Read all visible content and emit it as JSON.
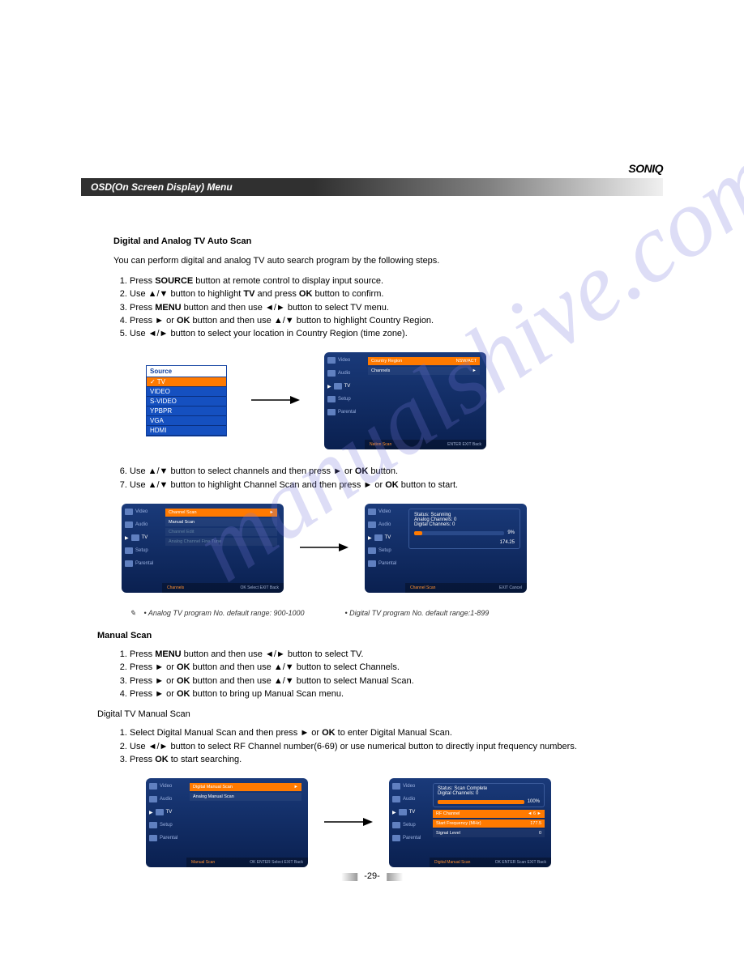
{
  "brand": "SONIQ",
  "title": "OSD(On Screen Display) Menu",
  "page_number": "-29-",
  "watermark": "manualshive.com",
  "section1": {
    "heading": "Digital and Analog TV Auto Scan",
    "intro": "You can perform digital and analog TV auto search program by the following steps.",
    "steps_a": [
      "Press <b>SOURCE</b> button at remote control to display input source.",
      "Use ▲/▼ button to highlight <b>TV</b> and press <b>OK</b> button to confirm.",
      "Press <b>MENU</b> button and then use ◄/► button to select TV menu.",
      "Press ► or <b>OK</b> button and then use ▲/▼ button to highlight Country Region.",
      "Use ◄/► button to select your location in Country Region (time zone)."
    ],
    "steps_b": [
      "Use ▲/▼ button to select channels and then press ► or <b>OK</b> button.",
      "Use ▲/▼ button to highlight Channel Scan and then press ► or <b>OK</b> button to start."
    ]
  },
  "source_menu": {
    "header": "Source",
    "items": [
      "TV",
      "VIDEO",
      "S-VIDEO",
      "YPBPR",
      "VGA",
      "HDMI"
    ],
    "selected_index": 0
  },
  "osd_tabs": [
    "Video",
    "Audio",
    "TV",
    "Setup",
    "Parental"
  ],
  "osd_panel_a": {
    "rows": [
      {
        "label": "Country Region",
        "value": "NSW/ACT",
        "highlight": true
      },
      {
        "label": "Channels",
        "value": "►",
        "highlight": false
      }
    ],
    "footer_left": "Nation Scan"
  },
  "osd_panel_b": {
    "rows": [
      {
        "label": "Channel Scan",
        "value": "►",
        "highlight": true
      },
      {
        "label": "Manual Scan",
        "value": "",
        "highlight": false
      },
      {
        "label": "Channel Edit",
        "value": "",
        "highlight": false,
        "dim": true
      },
      {
        "label": "Analog Channel Fine Tune",
        "value": "",
        "highlight": false,
        "dim": true
      }
    ],
    "footer_left": "Channels"
  },
  "osd_panel_c": {
    "status": "Status: Scanning",
    "analog": "Analog Channels: 0",
    "digital": "Digital Channels: 0",
    "pct": "9%",
    "pct_width": "9%",
    "freq": "174.25",
    "footer_left": "Channel Scan"
  },
  "caption": {
    "left": "• Analog TV program No. default range: 900-1000",
    "right": "• Digital TV program No. default range:1-899"
  },
  "section2": {
    "heading": "Manual Scan",
    "steps": [
      "Press <b>MENU</b> button and then use ◄/► button to select TV.",
      "Press ► or <b>OK</b> button and then use ▲/▼ button to select Channels.",
      "Press ► or <b>OK</b> button and then use ▲/▼ button to select Manual Scan.",
      "Press ► or <b>OK</b> button to bring up Manual Scan menu."
    ]
  },
  "section3": {
    "heading": "Digital TV Manual Scan",
    "steps": [
      "Select Digital Manual Scan and then press ► or <b>OK</b> to enter Digital Manual Scan.",
      "Use ◄/► button to select RF Channel number(6-69) or use numerical button to directly input frequency numbers.",
      "Press <b>OK</b> to start searching."
    ]
  },
  "osd_panel_d": {
    "rows": [
      {
        "label": "Digital Manual Scan",
        "value": "►",
        "highlight": true
      },
      {
        "label": "Analog Manual Scan",
        "value": "",
        "highlight": false
      }
    ],
    "footer_left": "Manual Scan"
  },
  "osd_panel_e": {
    "status": "Status: Scan Complete",
    "digital": "Digital Channels: 0",
    "pct": "100%",
    "pct_width": "100%",
    "rf_label": "RF Channel",
    "rf_value": "6",
    "freq_label": "Start Frequency (MHz)",
    "freq_value": "177.5",
    "signal_label": "Signal Level",
    "signal_value": "0",
    "footer_left": "Digital Manual Scan"
  },
  "footer_ctrls": {
    "ok": "OK",
    "enter": "ENTER",
    "exit": "EXIT",
    "back": "Back",
    "select": "Select",
    "scan": "Scan",
    "cancel": "Cancel"
  }
}
